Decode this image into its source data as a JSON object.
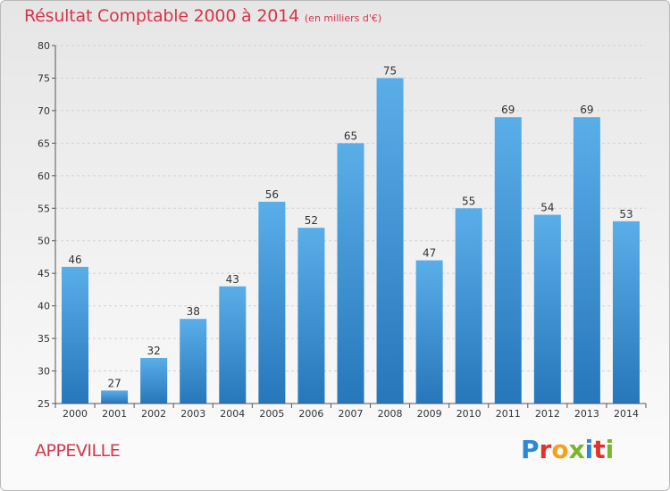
{
  "header": {
    "title": "Résultat Comptable 2000 à 2014",
    "subtitle": "(en milliers d'€)"
  },
  "footer": {
    "commune": "APPEVILLE",
    "brand": "Proxiti",
    "brand_colors": [
      "#2a8ad8",
      "#e2322f",
      "#f4a11c",
      "#7ab52c",
      "#2a8ad8",
      "#e2322f",
      "#7ab52c"
    ]
  },
  "colors": {
    "bar_top": "#5aaee8",
    "bar_bottom": "#2677bb",
    "grid": "#d2d2d2",
    "axis": "#555555",
    "label": "#333333"
  },
  "chart_data": {
    "type": "bar",
    "title": "Résultat Comptable 2000 à 2014",
    "subtitle": "(en milliers d'€)",
    "categories": [
      "2000",
      "2001",
      "2002",
      "2003",
      "2004",
      "2005",
      "2006",
      "2007",
      "2008",
      "2009",
      "2010",
      "2011",
      "2012",
      "2013",
      "2014"
    ],
    "values": [
      46,
      27,
      32,
      38,
      43,
      56,
      52,
      65,
      75,
      47,
      55,
      69,
      54,
      69,
      53
    ],
    "data_labels": [
      "46",
      "27",
      "32",
      "38",
      "43",
      "56",
      "52",
      "65",
      "75",
      "47",
      "55",
      "69",
      "54",
      "69",
      "53"
    ],
    "ylim": [
      25,
      80
    ],
    "yticks": [
      25,
      30,
      35,
      40,
      45,
      50,
      55,
      60,
      65,
      70,
      75,
      80
    ],
    "ytick_labels": [
      "25",
      "30",
      "35",
      "40",
      "45",
      "50",
      "55",
      "60",
      "65",
      "70",
      "75",
      "80"
    ],
    "xlabel": "",
    "ylabel": "",
    "grid": true
  }
}
